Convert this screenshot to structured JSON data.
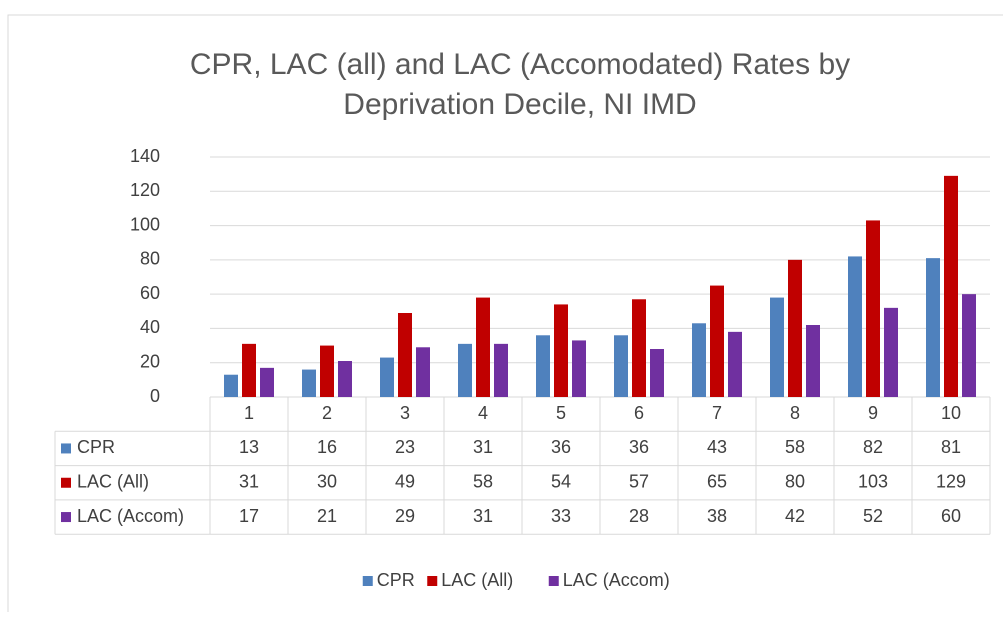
{
  "chart_data": {
    "type": "bar",
    "title": "CPR, LAC (all) and LAC (Accomodated) Rates by",
    "subtitle": "Deprivation Decile, NI IMD",
    "categories": [
      "1",
      "2",
      "3",
      "4",
      "5",
      "6",
      "7",
      "8",
      "9",
      "10"
    ],
    "series": [
      {
        "name": "CPR",
        "color": "#4f81bd",
        "values": [
          13,
          16,
          23,
          31,
          36,
          36,
          43,
          58,
          82,
          81
        ]
      },
      {
        "name": "LAC (All)",
        "color": "#c00000",
        "values": [
          31,
          30,
          49,
          58,
          54,
          57,
          65,
          80,
          103,
          129
        ]
      },
      {
        "name": "LAC (Accom)",
        "color": "#7030a0",
        "values": [
          17,
          21,
          29,
          31,
          33,
          28,
          38,
          42,
          52,
          60
        ]
      }
    ],
    "ylim": [
      0,
      140
    ],
    "yticks": [
      0,
      20,
      40,
      60,
      80,
      100,
      120,
      140
    ],
    "grid": true,
    "legend": "bottom",
    "data_table": true
  }
}
